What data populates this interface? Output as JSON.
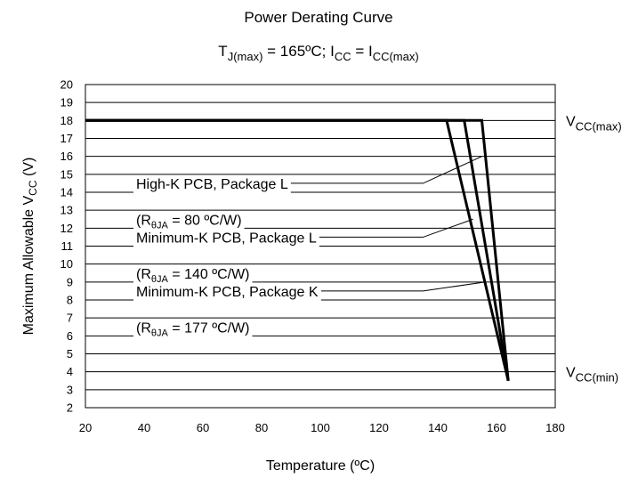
{
  "chart_data": {
    "type": "line",
    "title": "Power Derating Curve",
    "subtitle": {
      "tj_base": "T",
      "tj_sub": "J(max)",
      "tj_value": " = 165ºC; ",
      "icc_base": "I",
      "icc_sub": "CC",
      "eq": " =  ",
      "iccmax_base": "I",
      "iccmax_sub": "CC(max)"
    },
    "xlabel": "Temperature (ºC)",
    "ylabel_base": "Maximum Allowable V",
    "ylabel_sub": "CC",
    "ylabel_suffix": " (V)",
    "xlim": [
      20,
      180
    ],
    "ylim": [
      2,
      20
    ],
    "xticks": [
      20,
      40,
      60,
      80,
      100,
      120,
      140,
      160,
      180
    ],
    "yticks": [
      2,
      3,
      4,
      5,
      6,
      7,
      8,
      9,
      10,
      11,
      12,
      13,
      14,
      15,
      16,
      17,
      18,
      19,
      20
    ],
    "horizontal_grid": true,
    "series": [
      {
        "points": [
          [
            20,
            18
          ],
          [
            143,
            18
          ],
          [
            164,
            3.5
          ]
        ]
      },
      {
        "points": [
          [
            20,
            18
          ],
          [
            149,
            18
          ],
          [
            164,
            3.5
          ]
        ]
      },
      {
        "points": [
          [
            20,
            18
          ],
          [
            155,
            18
          ],
          [
            164,
            3.5
          ]
        ]
      }
    ],
    "right_labels": [
      {
        "base": "V",
        "sub": "CC(max)",
        "y": 18
      },
      {
        "base": "V",
        "sub": "CC(min)",
        "y": 4
      }
    ],
    "annotations": [
      {
        "text": "High-K PCB, Package L",
        "rtheta": "80 ºC/W",
        "text_y": 14.5,
        "rtheta_y": 12.5,
        "target": [
          155,
          16
        ],
        "elbow": [
          135,
          14.5
        ]
      },
      {
        "text": "Minimum-K PCB, Package L",
        "rtheta": "140 ºC/W",
        "text_y": 11.5,
        "rtheta_y": 9.5,
        "target": [
          152,
          12.5
        ],
        "elbow": [
          135,
          11.5
        ]
      },
      {
        "text": "Minimum-K PCB, Package K",
        "rtheta": "177 ºC/W",
        "text_y": 8.5,
        "rtheta_y": 6.5,
        "target": [
          156,
          9
        ],
        "elbow": [
          135,
          8.5
        ]
      }
    ],
    "rtheta_prefix": "(R",
    "rtheta_sub": "θJA",
    "rtheta_eq": " = ",
    "rtheta_close": ")"
  }
}
